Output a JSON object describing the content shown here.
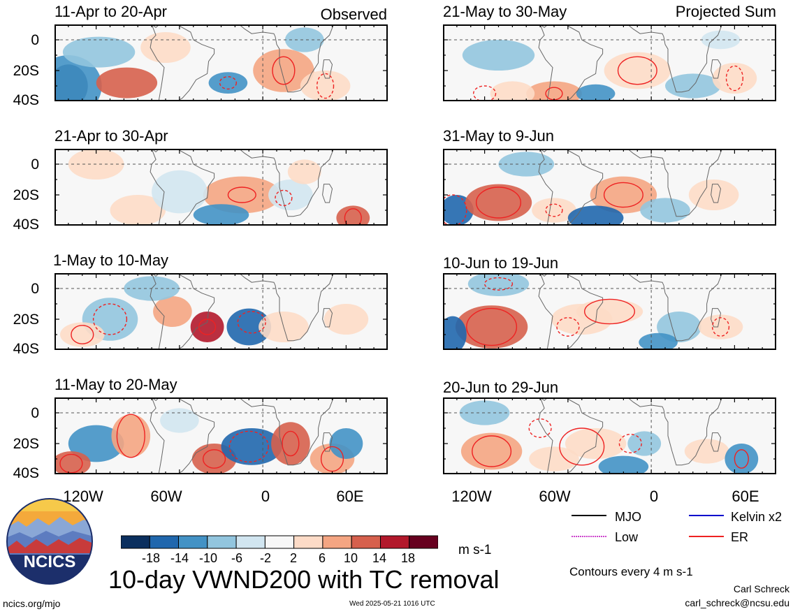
{
  "title": "10-day VWND200 with TC removal",
  "units": "m s-1",
  "contour_note": "Contours every 4 m s-1",
  "credit_name": "Carl Schreck",
  "credit_email": "carl_schreck@ncsu.edu",
  "site": "ncics.org/mjo",
  "timestamp": "Wed 2025-05-21 1016 UTC",
  "logo_text": "NCICS",
  "column_labels": {
    "left": "Observed",
    "right": "Projected Sum"
  },
  "y_ticks": [
    "0",
    "20S",
    "40S"
  ],
  "x_ticks": [
    "120W",
    "60W",
    "0",
    "60E"
  ],
  "colorbar": {
    "labels": [
      "-18",
      "-14",
      "-10",
      "-6",
      "-2",
      "2",
      "6",
      "10",
      "14",
      "18"
    ],
    "colors": [
      "#0b2f5e",
      "#2067ad",
      "#4392c5",
      "#92c5de",
      "#d1e5f0",
      "#f7f7f7",
      "#fddbc7",
      "#f4a582",
      "#d6604d",
      "#b2182b",
      "#67001f"
    ]
  },
  "legend": [
    {
      "label": "MJO",
      "color": "#000000"
    },
    {
      "label": "Kelvin x2",
      "color": "#0000cc"
    },
    {
      "label": "Low",
      "color": "#cc44cc"
    },
    {
      "label": "ER",
      "color": "#ee2222"
    }
  ],
  "chart_data": {
    "type": "heatmap",
    "variable": "VWND200",
    "xlim": [
      -150,
      90
    ],
    "ylim": [
      -40,
      10
    ],
    "panels": [
      {
        "period": "11-Apr to 20-Apr",
        "kind": "Observed"
      },
      {
        "period": "21-Apr to 30-Apr",
        "kind": "Observed"
      },
      {
        "period": "1-May to 10-May",
        "kind": "Observed"
      },
      {
        "period": "11-May to 20-May",
        "kind": "Observed"
      },
      {
        "period": "21-May to 30-May",
        "kind": "Projected Sum"
      },
      {
        "period": "31-May to 9-Jun",
        "kind": "Projected Sum"
      },
      {
        "period": "10-Jun to 19-Jun",
        "kind": "Projected Sum"
      },
      {
        "period": "20-Jun to 29-Jun",
        "kind": "Projected Sum"
      }
    ]
  }
}
